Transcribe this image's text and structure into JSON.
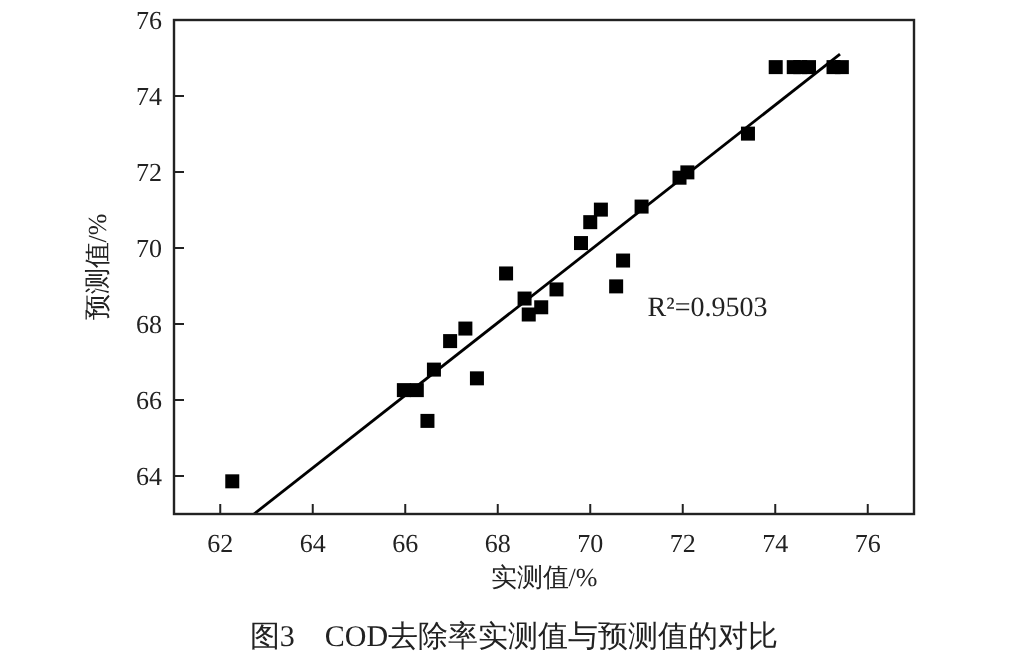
{
  "chart_data": {
    "type": "scatter",
    "xlabel": "实测值/%",
    "ylabel": "预测值/%",
    "xlim": [
      61,
      77
    ],
    "ylim": [
      63,
      76
    ],
    "xticks": [
      62,
      64,
      66,
      68,
      70,
      72,
      74,
      76
    ],
    "yticks": [
      64,
      66,
      68,
      70,
      72,
      74,
      76
    ],
    "grid": false,
    "marker": "square",
    "annotations": [
      "R²=0.9503",
      "图3　COD去除率实测值与预测值的对比"
    ],
    "series": [
      {
        "color": "#000000",
        "x": [
          62.26,
          65.97,
          66.25,
          66.48,
          66.62,
          66.97,
          67.3,
          67.55,
          68.18,
          68.58,
          68.67,
          68.94,
          69.27,
          69.8,
          70.0,
          70.23,
          70.56,
          70.71,
          71.11,
          71.93,
          72.1,
          73.41,
          74.01,
          74.4,
          74.54,
          74.73,
          75.26,
          75.44
        ],
        "values": [
          63.86,
          66.26,
          66.26,
          65.45,
          66.8,
          67.55,
          67.88,
          66.57,
          69.33,
          68.67,
          68.25,
          68.44,
          68.91,
          70.13,
          70.68,
          71.01,
          68.99,
          69.67,
          71.09,
          71.85,
          71.99,
          73.01,
          74.76,
          74.76,
          74.76,
          74.76,
          74.76,
          74.76
        ]
      },
      {
        "type": "line",
        "color": "#000000",
        "line_style": "solid",
        "marker": "none",
        "x": [
          62.73,
          75.4
        ],
        "values": [
          63,
          75.1
        ]
      }
    ]
  }
}
